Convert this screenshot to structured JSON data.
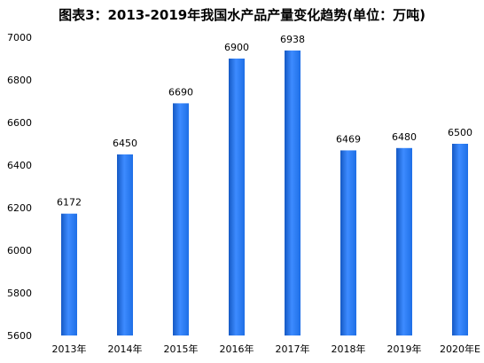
{
  "chart_data": {
    "type": "bar",
    "title": "图表3：2013-2019年我国水产品产量变化趋势(单位：万吨)",
    "categories": [
      "2013年",
      "2014年",
      "2015年",
      "2016年",
      "2017年",
      "2018年",
      "2019年",
      "2020年E"
    ],
    "values": [
      6172,
      6450,
      6690,
      6900,
      6938,
      6469,
      6480,
      6500
    ],
    "xlabel": "",
    "ylabel": "",
    "ylim": [
      5600,
      7000
    ],
    "yticks": [
      5600,
      5800,
      6000,
      6200,
      6400,
      6600,
      6800,
      7000
    ],
    "grid": false,
    "legend": "none",
    "colors": {
      "bar": "#1e6fe6",
      "bar_highlight": "#3d8bff",
      "bar_edge": "#1559c4"
    }
  }
}
